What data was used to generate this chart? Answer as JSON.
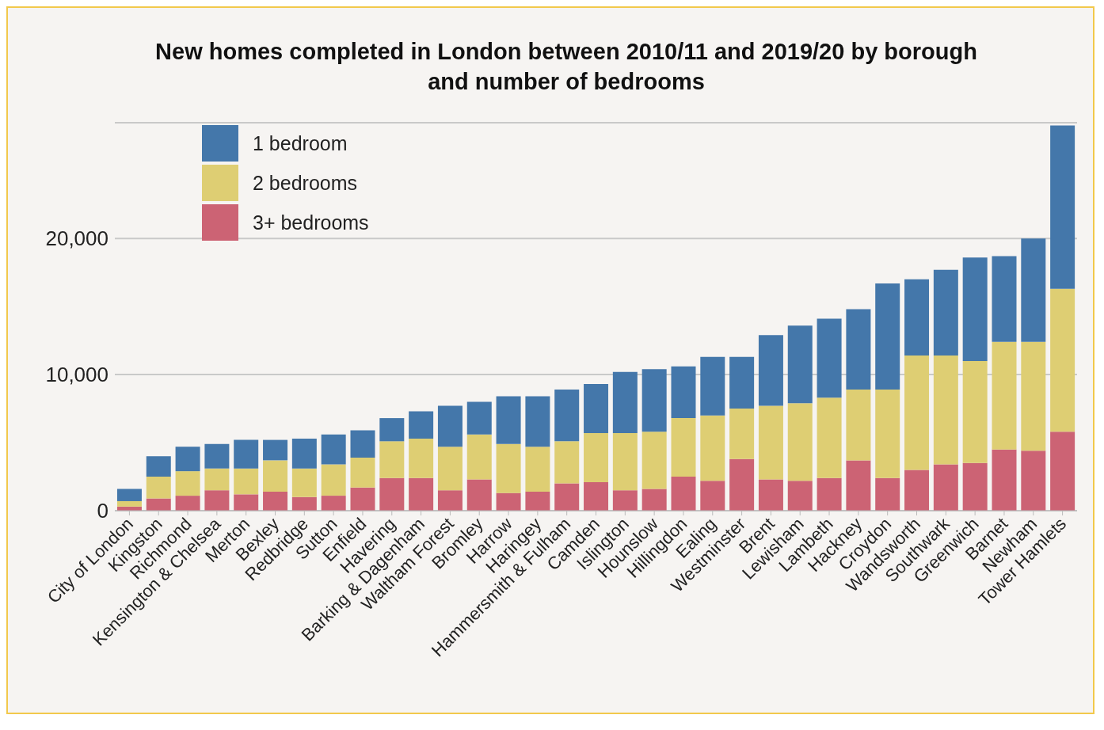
{
  "chart_data": {
    "type": "bar",
    "title": "New homes completed in London between 2010/11 and 2019/20 by borough and number of bedrooms",
    "categories": [
      "City of London",
      "Kingston",
      "Richmond",
      "Kensington & Chelsea",
      "Merton",
      "Bexley",
      "Redbridge",
      "Sutton",
      "Enfield",
      "Havering",
      "Barking & Dagenham",
      "Waltham Forest",
      "Bromley",
      "Harrow",
      "Haringey",
      "Hammersmith & Fulham",
      "Camden",
      "Islington",
      "Hounslow",
      "Hillingdon",
      "Ealing",
      "Westminster",
      "Brent",
      "Lewisham",
      "Lambeth",
      "Hackney",
      "Croydon",
      "Wandsworth",
      "Southwark",
      "Greenwich",
      "Barnet",
      "Newham",
      "Tower Hamlets"
    ],
    "stacked": true,
    "series": [
      {
        "name": "3+ bedrooms",
        "color": "#cc6374",
        "values": [
          300,
          900,
          1100,
          1500,
          1200,
          1400,
          1000,
          1100,
          1700,
          2400,
          2400,
          1500,
          2300,
          1300,
          1400,
          2000,
          2100,
          1500,
          1600,
          2500,
          2200,
          3800,
          2300,
          2200,
          2400,
          3700,
          2400,
          3000,
          3400,
          3500,
          4500,
          4400,
          5800
        ]
      },
      {
        "name": "2 bedrooms",
        "color": "#dece73",
        "values": [
          400,
          1600,
          1800,
          1600,
          1900,
          2300,
          2100,
          2300,
          2200,
          2700,
          2900,
          3200,
          3300,
          3600,
          3300,
          3100,
          3600,
          4200,
          4200,
          4300,
          4800,
          3700,
          5400,
          5700,
          5900,
          5200,
          6500,
          8400,
          8000,
          7500,
          7900,
          8000,
          10500
        ]
      },
      {
        "name": "1 bedroom",
        "color": "#4477aa",
        "values": [
          900,
          1500,
          1800,
          1800,
          2100,
          1500,
          2200,
          2200,
          2000,
          1700,
          2000,
          3000,
          2400,
          3500,
          3700,
          3800,
          3600,
          4500,
          4600,
          3800,
          4300,
          3800,
          5200,
          5700,
          5800,
          5900,
          7800,
          5600,
          6300,
          7600,
          6300,
          7600,
          12000
        ]
      }
    ],
    "ylim": [
      0,
      28500
    ],
    "yticks": [
      0,
      {
        "value": 10000,
        "label": "10,000"
      },
      {
        "value": 20000,
        "label": "20,000"
      }
    ],
    "grid": "y",
    "legend": "top left"
  }
}
